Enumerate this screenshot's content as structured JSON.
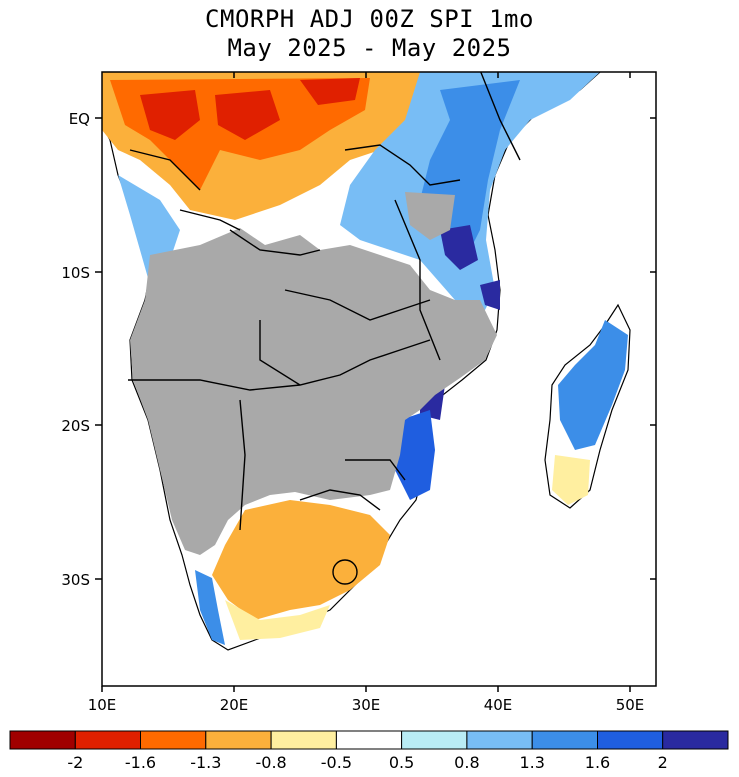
{
  "title": {
    "line1": "CMORPH ADJ 00Z SPI 1mo",
    "line2": "May 2025 - May 2025"
  },
  "axes": {
    "lat_labels": [
      "EQ",
      "10S",
      "20S",
      "30S"
    ],
    "lat_values": [
      0,
      -10,
      -20,
      -30
    ],
    "lon_labels": [
      "10E",
      "20E",
      "30E",
      "40E",
      "50E"
    ],
    "lon_values": [
      10,
      20,
      30,
      40,
      50
    ]
  },
  "extent": {
    "lon_min": 10,
    "lon_max": 52,
    "lat_max": 3,
    "lat_min": -37
  },
  "legend": {
    "labels": [
      "-2",
      "-1.6",
      "-1.3",
      "-0.8",
      "-0.5",
      "0.5",
      "0.8",
      "1.3",
      "1.6",
      "2"
    ],
    "colors": [
      "#a00000",
      "#e02000",
      "#ff6a00",
      "#fbb03b",
      "#ffefa0",
      "#ffffff",
      "#b9ecf5",
      "#78bdf5",
      "#3c8ee8",
      "#1f5ee0",
      "#2a2aa0"
    ]
  },
  "colors": {
    "no_data": "#a9a9a9",
    "ocean": "#ffffff",
    "border": "#000000"
  }
}
